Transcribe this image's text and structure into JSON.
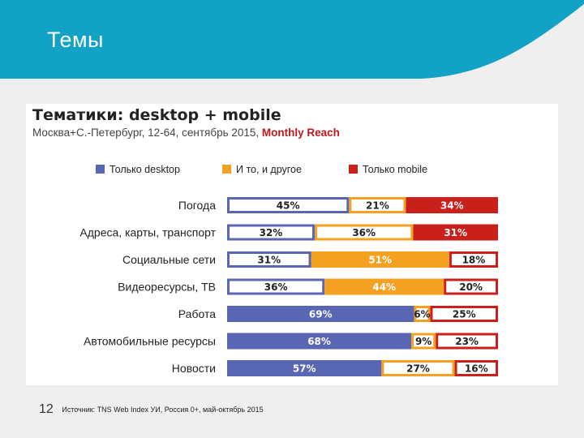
{
  "slide": {
    "title": "Темы",
    "page_number": "12",
    "source": "Источник: TNS Web Index УИ, Россия 0+, май-октябрь 2015"
  },
  "colors": {
    "header": "#11a2c5",
    "desktop": "#5866b3",
    "both": "#f4a122",
    "mobile": "#c9201c"
  },
  "chart_data": {
    "type": "bar",
    "stacked": true,
    "orientation": "horizontal",
    "title": "Тематики: desktop + mobile",
    "subtitle": "Москва+С.-Петербург, 12-64, сентябрь 2015,",
    "subtitle_accent": "Monthly Reach",
    "legend_position": "top",
    "categories": [
      "Погода",
      "Адреса, карты, транспорт",
      "Социальные сети",
      "Видеоресурсы, ТВ",
      "Работа",
      "Автомобильные ресурсы",
      "Новости"
    ],
    "series": [
      {
        "name": "Только desktop",
        "values": [
          45,
          32,
          31,
          36,
          69,
          68,
          57
        ]
      },
      {
        "name": "И то, и другое",
        "values": [
          21,
          36,
          51,
          44,
          6,
          9,
          27
        ]
      },
      {
        "name": "Только mobile",
        "values": [
          34,
          31,
          18,
          20,
          25,
          23,
          16
        ]
      }
    ],
    "value_labels": [
      [
        "45%",
        "21%",
        "34%"
      ],
      [
        "32%",
        "36%",
        "31%"
      ],
      [
        "31%",
        "51%",
        "18%"
      ],
      [
        "36%",
        "44%",
        "20%"
      ],
      [
        "69%",
        "6%",
        "25%"
      ],
      [
        "68%",
        "9%",
        "23%"
      ],
      [
        "57%",
        "27%",
        "16%"
      ]
    ],
    "filled": [
      [
        false,
        false,
        true
      ],
      [
        false,
        false,
        true
      ],
      [
        false,
        true,
        false
      ],
      [
        false,
        true,
        false
      ],
      [
        true,
        false,
        false
      ],
      [
        true,
        false,
        false
      ],
      [
        true,
        false,
        false
      ]
    ]
  }
}
